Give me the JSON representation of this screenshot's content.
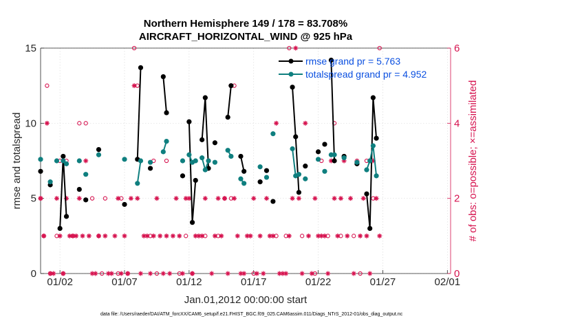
{
  "chart_data": {
    "type": "line",
    "title": "Northern Hemisphere 149 / 178 = 83.708%",
    "subtitle": "AIRCRAFT_HORIZONTAL_WIND @ 925 hPa",
    "xlabel": "Jan.01,2012 00:00:00 start",
    "ylabel": "rmse and totalspread",
    "y2label": "# of obs: o=possible; ×=assimilated",
    "footnote": "data file: /Users/raeder/DAI/ATM_forcXX/CAM6_setup/f.e21.FHIST_BGC.f09_025.CAM6assim.011/Diags_NTrS_2012-01/obs_diag_output.nc",
    "xlim": [
      0.5,
      32.25
    ],
    "ylim": [
      0,
      15
    ],
    "y2lim": [
      0,
      6
    ],
    "xticks": [
      {
        "x": 2,
        "label": "01/02"
      },
      {
        "x": 7,
        "label": "01/07"
      },
      {
        "x": 12,
        "label": "01/12"
      },
      {
        "x": 17,
        "label": "01/17"
      },
      {
        "x": 22,
        "label": "01/22"
      },
      {
        "x": 27,
        "label": "01/27"
      },
      {
        "x": 32,
        "label": "02/01"
      }
    ],
    "yticks": [
      "0",
      "5",
      "10",
      "15"
    ],
    "y2ticks": [
      "0",
      "2",
      "4",
      "6"
    ],
    "legend": {
      "position": "top-right"
    },
    "series": [
      {
        "name": "rmse grand pr = 5.763",
        "color": "#000000",
        "points": [
          [
            0.5,
            6.8
          ],
          [
            1.25,
            5.9
          ],
          [
            2.0,
            3.0
          ],
          [
            2.25,
            7.8
          ],
          [
            2.5,
            3.8
          ],
          [
            3.5,
            5.6
          ],
          [
            4.0,
            4.9
          ],
          [
            5.0,
            8.25
          ],
          [
            7.0,
            4.6
          ],
          [
            8.0,
            7.6
          ],
          [
            8.25,
            13.7
          ],
          [
            9.0,
            7.0
          ],
          [
            10.0,
            13.1
          ],
          [
            10.25,
            10.7
          ],
          [
            11.5,
            6.5
          ],
          [
            12.0,
            10.1
          ],
          [
            12.25,
            3.4
          ],
          [
            12.5,
            6.2
          ],
          [
            13.0,
            8.9
          ],
          [
            13.25,
            11.7
          ],
          [
            13.5,
            7.0
          ],
          [
            14.0,
            8.7
          ],
          [
            15.0,
            10.4
          ],
          [
            15.25,
            12.5
          ],
          [
            16.0,
            7.8
          ],
          [
            16.25,
            6.8
          ],
          [
            17.5,
            6.1
          ],
          [
            18.0,
            6.85
          ],
          [
            18.5,
            4.8
          ],
          [
            20.0,
            12.4
          ],
          [
            20.25,
            9.1
          ],
          [
            20.5,
            5.4
          ],
          [
            21.0,
            7.15
          ],
          [
            22.0,
            8.1
          ],
          [
            22.5,
            8.6
          ],
          [
            23.0,
            14.2
          ],
          [
            23.25,
            7.5
          ],
          [
            24.0,
            7.8
          ],
          [
            25.0,
            7.3
          ],
          [
            25.75,
            5.3
          ],
          [
            26.0,
            3.0
          ],
          [
            26.25,
            11.7
          ],
          [
            26.5,
            9.0
          ]
        ]
      },
      {
        "name": "totalspread grand pr = 4.952",
        "color": "#0f7f7f",
        "points": [
          [
            0.5,
            7.6
          ],
          [
            1.25,
            6.1
          ],
          [
            1.75,
            7.5
          ],
          [
            2.25,
            7.5
          ],
          [
            2.5,
            7.3
          ],
          [
            3.5,
            7.5
          ],
          [
            4.0,
            6.6
          ],
          [
            5.0,
            7.9
          ],
          [
            7.0,
            7.6
          ],
          [
            8.0,
            6.0
          ],
          [
            8.25,
            7.5
          ],
          [
            9.0,
            7.4
          ],
          [
            10.0,
            8.1
          ],
          [
            10.25,
            8.8
          ],
          [
            11.5,
            7.5
          ],
          [
            12.0,
            7.9
          ],
          [
            12.25,
            7.4
          ],
          [
            12.5,
            7.5
          ],
          [
            13.0,
            7.7
          ],
          [
            13.25,
            6.9
          ],
          [
            13.5,
            7.5
          ],
          [
            14.0,
            7.4
          ],
          [
            15.0,
            8.2
          ],
          [
            15.25,
            7.8
          ],
          [
            16.0,
            6.3
          ],
          [
            16.25,
            6.0
          ],
          [
            17.5,
            7.1
          ],
          [
            18.0,
            6.4
          ],
          [
            18.5,
            9.3
          ],
          [
            20.0,
            8.3
          ],
          [
            20.25,
            6.5
          ],
          [
            20.5,
            6.6
          ],
          [
            21.0,
            6.3
          ],
          [
            22.0,
            7.6
          ],
          [
            22.5,
            6.8
          ],
          [
            23.0,
            7.9
          ],
          [
            23.25,
            7.9
          ],
          [
            24.0,
            7.7
          ],
          [
            25.0,
            7.4
          ],
          [
            25.75,
            6.9
          ],
          [
            26.0,
            7.5
          ],
          [
            26.25,
            8.5
          ],
          [
            26.5,
            6.5
          ]
        ]
      }
    ],
    "obs_counts": {
      "color": "#d6134f",
      "possible": [
        [
          0.5,
          2
        ],
        [
          0.75,
          1
        ],
        [
          1.0,
          5
        ],
        [
          1.25,
          0
        ],
        [
          1.75,
          1
        ],
        [
          2.0,
          3
        ],
        [
          2.25,
          0
        ],
        [
          2.5,
          3
        ],
        [
          3.0,
          1
        ],
        [
          3.5,
          4
        ],
        [
          4.0,
          4
        ],
        [
          4.5,
          2
        ],
        [
          5.0,
          1
        ],
        [
          5.25,
          0
        ],
        [
          5.5,
          2
        ],
        [
          6.5,
          0
        ],
        [
          6.75,
          2
        ],
        [
          7.25,
          0
        ],
        [
          7.75,
          6
        ],
        [
          8.0,
          5
        ],
        [
          9.0,
          1
        ],
        [
          9.25,
          3
        ],
        [
          9.5,
          0
        ],
        [
          10.25,
          3
        ],
        [
          11.25,
          0
        ],
        [
          11.75,
          1
        ],
        [
          12.25,
          0
        ],
        [
          13.25,
          1
        ],
        [
          14.25,
          1
        ],
        [
          14.75,
          2
        ],
        [
          15.25,
          2
        ],
        [
          15.5,
          5
        ],
        [
          17.0,
          0
        ],
        [
          18.75,
          1
        ],
        [
          19.5,
          1
        ],
        [
          19.75,
          6
        ],
        [
          20.75,
          1
        ],
        [
          21.75,
          0
        ],
        [
          22.25,
          3
        ],
        [
          22.75,
          1
        ],
        [
          23.25,
          4
        ],
        [
          23.75,
          1
        ],
        [
          24.75,
          1
        ],
        [
          25.25,
          0
        ],
        [
          25.75,
          3
        ],
        [
          26.25,
          2
        ],
        [
          26.75,
          6
        ]
      ],
      "assimilated": [
        [
          0.5,
          2
        ],
        [
          0.75,
          1
        ],
        [
          1.0,
          4
        ],
        [
          1.25,
          0
        ],
        [
          1.5,
          0
        ],
        [
          1.75,
          2
        ],
        [
          2.0,
          1
        ],
        [
          2.25,
          0
        ],
        [
          2.5,
          2
        ],
        [
          2.75,
          1
        ],
        [
          3.0,
          1
        ],
        [
          3.25,
          1
        ],
        [
          3.5,
          2
        ],
        [
          3.75,
          1
        ],
        [
          4.0,
          3
        ],
        [
          4.25,
          1
        ],
        [
          4.5,
          0
        ],
        [
          4.75,
          0
        ],
        [
          5.0,
          1
        ],
        [
          5.5,
          1
        ],
        [
          5.75,
          0
        ],
        [
          6.0,
          0
        ],
        [
          6.25,
          1
        ],
        [
          6.5,
          2
        ],
        [
          6.75,
          0
        ],
        [
          7.0,
          1
        ],
        [
          7.25,
          0
        ],
        [
          7.5,
          2
        ],
        [
          7.75,
          5
        ],
        [
          8.0,
          2
        ],
        [
          8.25,
          0
        ],
        [
          8.5,
          1
        ],
        [
          8.75,
          1
        ],
        [
          9.0,
          0
        ],
        [
          9.25,
          1
        ],
        [
          9.5,
          2
        ],
        [
          9.75,
          1
        ],
        [
          10.0,
          0
        ],
        [
          10.25,
          1
        ],
        [
          10.5,
          0
        ],
        [
          10.75,
          1
        ],
        [
          11.0,
          2
        ],
        [
          11.25,
          1
        ],
        [
          11.5,
          0
        ],
        [
          11.75,
          2
        ],
        [
          12.0,
          2
        ],
        [
          12.25,
          0
        ],
        [
          12.5,
          1
        ],
        [
          12.75,
          1
        ],
        [
          13.0,
          1
        ],
        [
          13.25,
          2
        ],
        [
          13.5,
          3
        ],
        [
          13.75,
          0
        ],
        [
          14.0,
          1
        ],
        [
          14.25,
          2
        ],
        [
          14.5,
          1
        ],
        [
          14.75,
          2
        ],
        [
          15.0,
          0
        ],
        [
          15.25,
          5
        ],
        [
          15.5,
          2
        ],
        [
          15.75,
          1
        ],
        [
          16.0,
          0
        ],
        [
          16.25,
          0
        ],
        [
          16.5,
          1
        ],
        [
          16.75,
          1
        ],
        [
          17.0,
          2
        ],
        [
          17.25,
          0
        ],
        [
          17.5,
          1
        ],
        [
          17.75,
          0
        ],
        [
          18.0,
          2
        ],
        [
          18.25,
          1
        ],
        [
          18.5,
          1
        ],
        [
          18.75,
          4
        ],
        [
          19.0,
          0
        ],
        [
          19.25,
          0
        ],
        [
          19.5,
          0
        ],
        [
          19.75,
          1
        ],
        [
          20.0,
          2
        ],
        [
          20.25,
          6
        ],
        [
          20.5,
          2
        ],
        [
          20.75,
          0
        ],
        [
          21.0,
          4
        ],
        [
          21.25,
          1
        ],
        [
          21.5,
          0
        ],
        [
          21.75,
          2
        ],
        [
          22.0,
          1
        ],
        [
          22.25,
          1
        ],
        [
          22.5,
          1
        ],
        [
          22.75,
          0
        ],
        [
          23.0,
          3
        ],
        [
          23.25,
          2
        ],
        [
          23.5,
          1
        ],
        [
          23.75,
          2
        ],
        [
          24.0,
          3
        ],
        [
          24.25,
          1
        ],
        [
          24.5,
          2
        ],
        [
          24.75,
          0
        ],
        [
          25.0,
          3
        ],
        [
          25.25,
          1
        ],
        [
          25.5,
          2
        ],
        [
          25.75,
          1
        ],
        [
          26.0,
          0
        ],
        [
          26.25,
          3
        ],
        [
          26.5,
          2
        ],
        [
          26.75,
          1
        ]
      ]
    }
  }
}
